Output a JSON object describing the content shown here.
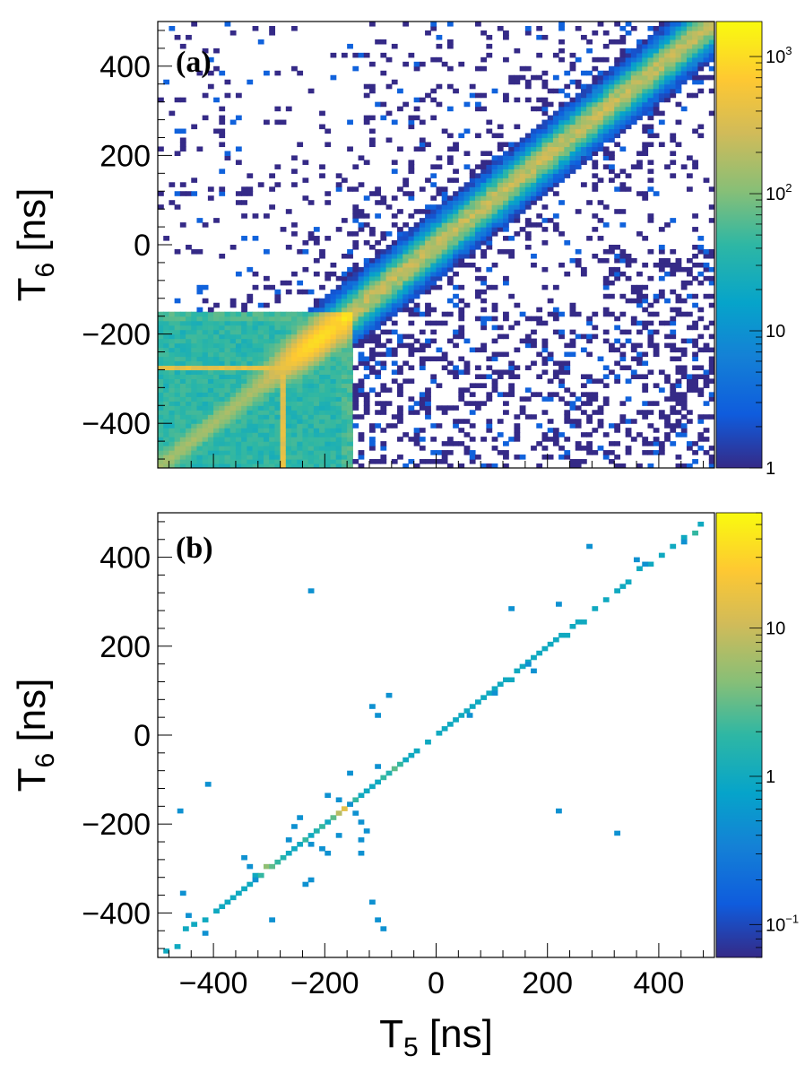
{
  "chart_data": [
    {
      "type": "heatmap",
      "panel_label": "(a)",
      "xlabel": "T5 [ns]",
      "ylabel": "T6 [ns]",
      "xlim": [
        -500,
        500
      ],
      "ylim": [
        -500,
        500
      ],
      "xticks": [
        -400,
        -200,
        0,
        200,
        400
      ],
      "yticks": [
        -400,
        -200,
        0,
        200,
        400
      ],
      "ytick_labels": [
        "−400",
        "−200",
        "0",
        "200",
        "400"
      ],
      "x_tick_labels_shown": false,
      "z_scale": "log",
      "zlim": [
        1,
        1800
      ],
      "colorbar_ticks": [
        {
          "value": 1,
          "label": "1"
        },
        {
          "value": 10,
          "label": "10"
        },
        {
          "value": 100,
          "label": "10",
          "exponent": "2"
        },
        {
          "value": 1000,
          "label": "10",
          "exponent": "3"
        }
      ],
      "bin_width_ns": 10,
      "features": [
        {
          "description": "dense block",
          "x_range": [
            -500,
            -150
          ],
          "y_range": [
            -500,
            -150
          ],
          "level": 40
        },
        {
          "description": "diagonal band T6 = T5",
          "x_range": [
            -500,
            500
          ],
          "peak": 1200
        },
        {
          "description": "horizontal line",
          "y": -275,
          "x_range": [
            -500,
            -270
          ],
          "level": 400
        },
        {
          "description": "vertical line",
          "x": -275,
          "y_range": [
            -500,
            -270
          ],
          "level": 400
        },
        {
          "description": "sparse background",
          "x_range": [
            -500,
            500
          ],
          "y_range": [
            -500,
            500
          ],
          "level": 1
        }
      ]
    },
    {
      "type": "heatmap",
      "panel_label": "(b)",
      "xlabel": "T5 [ns]",
      "ylabel": "T6 [ns]",
      "xlim": [
        -500,
        500
      ],
      "ylim": [
        -500,
        500
      ],
      "xticks": [
        -400,
        -200,
        0,
        200,
        400
      ],
      "yticks": [
        -400,
        -200,
        0,
        200,
        400
      ],
      "xtick_labels": [
        "−400",
        "−200",
        "0",
        "200",
        "400"
      ],
      "ytick_labels": [
        "−400",
        "−200",
        "0",
        "200",
        "400"
      ],
      "z_scale": "log",
      "zlim": [
        0.06,
        60
      ],
      "colorbar_ticks": [
        {
          "value": 0.1,
          "label": "10",
          "exponent": "−1"
        },
        {
          "value": 1,
          "label": "1"
        },
        {
          "value": 10,
          "label": "10"
        }
      ],
      "bin_width_ns": 10,
      "diagonal_bins": [
        [
          -490,
          -490,
          1
        ],
        [
          -470,
          -480,
          1
        ],
        [
          -455,
          -440,
          1
        ],
        [
          -440,
          -430,
          1
        ],
        [
          -420,
          -420,
          1
        ],
        [
          -400,
          -400,
          1
        ],
        [
          -390,
          -390,
          1
        ],
        [
          -380,
          -380,
          1
        ],
        [
          -370,
          -370,
          1
        ],
        [
          -360,
          -360,
          1
        ],
        [
          -350,
          -350,
          1
        ],
        [
          -340,
          -340,
          1
        ],
        [
          -330,
          -320,
          1
        ],
        [
          -320,
          -320,
          2
        ],
        [
          -310,
          -300,
          5
        ],
        [
          -300,
          -300,
          3
        ],
        [
          -290,
          -290,
          2
        ],
        [
          -280,
          -280,
          1.5
        ],
        [
          -270,
          -270,
          1
        ],
        [
          -260,
          -260,
          1
        ],
        [
          -250,
          -250,
          1
        ],
        [
          -240,
          -240,
          2
        ],
        [
          -230,
          -230,
          1
        ],
        [
          -220,
          -220,
          1.5
        ],
        [
          -210,
          -210,
          2
        ],
        [
          -200,
          -200,
          1
        ],
        [
          -190,
          -190,
          3
        ],
        [
          -180,
          -180,
          8
        ],
        [
          -170,
          -170,
          15
        ],
        [
          -160,
          -160,
          4
        ],
        [
          -150,
          -150,
          2
        ],
        [
          -140,
          -140,
          1
        ],
        [
          -130,
          -130,
          1
        ],
        [
          -120,
          -120,
          1
        ],
        [
          -110,
          -110,
          1
        ],
        [
          -100,
          -100,
          2
        ],
        [
          -90,
          -90,
          1.5
        ],
        [
          -80,
          -80,
          3
        ],
        [
          -70,
          -70,
          2
        ],
        [
          -60,
          -60,
          1
        ],
        [
          -50,
          -50,
          1
        ],
        [
          -40,
          -40,
          1
        ],
        [
          -20,
          -20,
          1
        ],
        [
          0,
          0,
          1
        ],
        [
          10,
          10,
          1
        ],
        [
          20,
          20,
          1
        ],
        [
          30,
          30,
          1
        ],
        [
          40,
          40,
          1
        ],
        [
          50,
          50,
          1
        ],
        [
          60,
          60,
          1
        ],
        [
          70,
          70,
          1
        ],
        [
          80,
          80,
          1
        ],
        [
          90,
          90,
          1
        ],
        [
          100,
          100,
          1
        ],
        [
          110,
          110,
          1
        ],
        [
          120,
          120,
          1
        ],
        [
          130,
          120,
          1
        ],
        [
          140,
          140,
          1
        ],
        [
          150,
          150,
          1
        ],
        [
          160,
          160,
          1
        ],
        [
          170,
          170,
          1
        ],
        [
          180,
          180,
          1
        ],
        [
          190,
          190,
          1
        ],
        [
          200,
          200,
          1
        ],
        [
          210,
          210,
          1
        ],
        [
          220,
          220,
          1
        ],
        [
          230,
          220,
          1
        ],
        [
          240,
          240,
          1
        ],
        [
          250,
          250,
          1
        ],
        [
          260,
          250,
          1
        ],
        [
          280,
          280,
          1
        ],
        [
          300,
          300,
          1
        ],
        [
          320,
          320,
          1
        ],
        [
          330,
          330,
          1
        ],
        [
          340,
          340,
          1
        ],
        [
          360,
          370,
          1
        ],
        [
          380,
          380,
          1
        ],
        [
          400,
          400,
          1
        ],
        [
          420,
          420,
          1
        ],
        [
          440,
          440,
          1
        ],
        [
          460,
          450,
          2
        ],
        [
          470,
          470,
          1
        ]
      ],
      "offdiag_bins": [
        [
          -415,
          -115,
          0.5
        ],
        [
          -465,
          -175,
          0.5
        ],
        [
          -230,
          320,
          0.5
        ],
        [
          -90,
          85,
          0.5
        ],
        [
          -120,
          60,
          0.5
        ],
        [
          -110,
          40,
          0.5
        ],
        [
          -110,
          -75,
          0.5
        ],
        [
          -160,
          -90,
          0.5
        ],
        [
          -180,
          -230,
          0.5
        ],
        [
          -130,
          -220,
          0.5
        ],
        [
          -270,
          -240,
          0.5
        ],
        [
          -230,
          -250,
          0.5
        ],
        [
          -350,
          -280,
          0.5
        ],
        [
          -340,
          -300,
          0.5
        ],
        [
          -300,
          -420,
          0.5
        ],
        [
          -230,
          -330,
          0.5
        ],
        [
          -240,
          -340,
          0.5
        ],
        [
          -120,
          -380,
          0.5
        ],
        [
          -110,
          -420,
          0.5
        ],
        [
          -100,
          -440,
          0.5
        ],
        [
          -450,
          -410,
          0.5
        ],
        [
          -460,
          -360,
          0.5
        ],
        [
          -420,
          -450,
          0.5
        ],
        [
          -250,
          -190,
          0.5
        ],
        [
          -260,
          -210,
          0.5
        ],
        [
          -200,
          -140,
          0.5
        ],
        [
          -180,
          -150,
          0.5
        ],
        [
          -160,
          -160,
          0.5
        ],
        [
          -150,
          -180,
          0.5
        ],
        [
          -140,
          -200,
          0.5
        ],
        [
          -210,
          -260,
          0.5
        ],
        [
          -200,
          -270,
          0.5
        ],
        [
          -330,
          -330,
          0.5
        ],
        [
          -140,
          -240,
          0.5
        ],
        [
          -140,
          -270,
          0.5
        ],
        [
          130,
          280,
          0.5
        ],
        [
          215,
          290,
          0.5
        ],
        [
          270,
          420,
          0.5
        ],
        [
          355,
          390,
          0.5
        ],
        [
          370,
          380,
          0.5
        ],
        [
          160,
          155,
          0.5
        ],
        [
          170,
          140,
          0.5
        ],
        [
          215,
          -175,
          0.5
        ],
        [
          320,
          -225,
          0.5
        ],
        [
          440,
          430,
          0.5
        ],
        [
          100,
          90,
          0.5
        ],
        [
          55,
          40,
          0.5
        ]
      ]
    }
  ]
}
